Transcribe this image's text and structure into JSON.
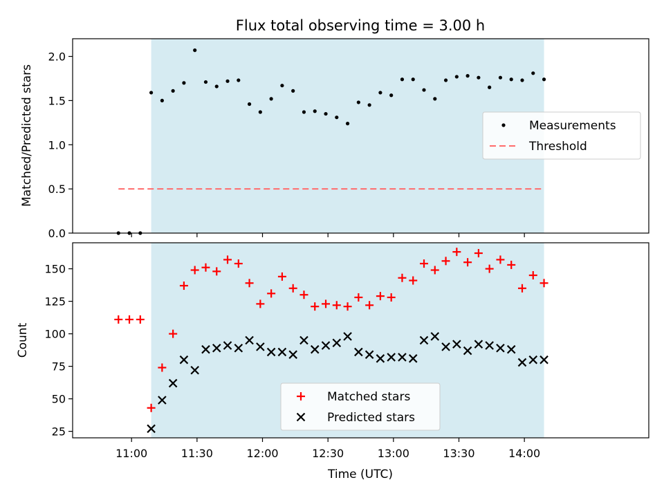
{
  "figure": {
    "title": "Flux total observing time = 3.00 h",
    "xlabel": "Time (UTC)",
    "xlim_minutes": [
      10.55,
      14.95
    ],
    "xticks": [
      "11:00",
      "11:30",
      "12:00",
      "12:30",
      "13:00",
      "13:30",
      "14:00"
    ],
    "shade_range": [
      "11:09",
      "14:09"
    ],
    "shade_color": "#add8e6"
  },
  "chart_data": [
    {
      "type": "scatter",
      "ylabel": "Matched/Predicted stars",
      "ylim": [
        0,
        2.2
      ],
      "yticks": [
        "0.0",
        "0.5",
        "1.0",
        "1.5",
        "2.0"
      ],
      "legend_position": "center-right",
      "x": [
        "10:54",
        "10:59",
        "11:04",
        "11:09",
        "11:14",
        "11:19",
        "11:24",
        "11:29",
        "11:34",
        "11:39",
        "11:44",
        "11:49",
        "11:54",
        "11:59",
        "12:04",
        "12:09",
        "12:14",
        "12:19",
        "12:24",
        "12:29",
        "12:34",
        "12:39",
        "12:44",
        "12:49",
        "12:54",
        "12:59",
        "13:04",
        "13:09",
        "13:14",
        "13:19",
        "13:24",
        "13:29",
        "13:34",
        "13:39",
        "13:44",
        "13:49",
        "13:54",
        "13:59",
        "14:04",
        "14:09"
      ],
      "series": [
        {
          "name": "Measurements",
          "color": "#000000",
          "marker": "dot",
          "values": [
            0.0,
            0.0,
            0.0,
            1.59,
            1.5,
            1.61,
            1.7,
            2.07,
            1.71,
            1.66,
            1.72,
            1.73,
            1.46,
            1.37,
            1.52,
            1.67,
            1.61,
            1.37,
            1.38,
            1.35,
            1.31,
            1.24,
            1.48,
            1.45,
            1.59,
            1.56,
            1.74,
            1.74,
            1.62,
            1.52,
            1.73,
            1.77,
            1.78,
            1.76,
            1.65,
            1.76,
            1.74,
            1.73,
            1.81,
            1.74
          ]
        }
      ],
      "threshold": {
        "name": "Threshold",
        "value": 0.5,
        "x_range": [
          "10:54",
          "14:09"
        ],
        "color": "#ff6b6b"
      }
    },
    {
      "type": "scatter",
      "ylabel": "Count",
      "ylim": [
        20,
        170
      ],
      "yticks": [
        "25",
        "50",
        "75",
        "100",
        "125",
        "150"
      ],
      "legend_position": "bottom-center",
      "x": [
        "10:54",
        "10:59",
        "11:04",
        "11:09",
        "11:14",
        "11:19",
        "11:24",
        "11:29",
        "11:34",
        "11:39",
        "11:44",
        "11:49",
        "11:54",
        "11:59",
        "12:04",
        "12:09",
        "12:14",
        "12:19",
        "12:24",
        "12:29",
        "12:34",
        "12:39",
        "12:44",
        "12:49",
        "12:54",
        "12:59",
        "13:04",
        "13:09",
        "13:14",
        "13:19",
        "13:24",
        "13:29",
        "13:34",
        "13:39",
        "13:44",
        "13:49",
        "13:54",
        "13:59",
        "14:04",
        "14:09"
      ],
      "series": [
        {
          "name": "Matched stars",
          "color": "#ff0000",
          "marker": "plus",
          "values": [
            111,
            111,
            111,
            43,
            74,
            100,
            137,
            149,
            151,
            148,
            157,
            154,
            139,
            123,
            131,
            144,
            135,
            130,
            121,
            123,
            122,
            121,
            128,
            122,
            129,
            128,
            143,
            141,
            154,
            149,
            156,
            163,
            155,
            162,
            150,
            157,
            153,
            135,
            145,
            139
          ]
        },
        {
          "name": "Predicted stars",
          "color": "#000000",
          "marker": "x",
          "values": [
            null,
            null,
            null,
            27,
            49,
            62,
            80,
            72,
            88,
            89,
            91,
            89,
            95,
            90,
            86,
            86,
            84,
            95,
            88,
            91,
            93,
            98,
            86,
            84,
            81,
            82,
            82,
            81,
            95,
            98,
            90,
            92,
            87,
            92,
            91,
            89,
            88,
            78,
            80,
            80
          ]
        }
      ]
    }
  ]
}
